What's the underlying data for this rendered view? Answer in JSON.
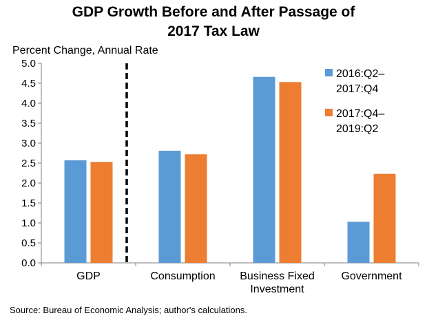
{
  "chart_data": {
    "type": "bar",
    "title_lines": [
      "GDP Growth Before and After Passage of",
      "2017 Tax Law"
    ],
    "ylabel": "Percent Change, Annual Rate",
    "xlabel": "",
    "ylim": [
      0,
      5
    ],
    "yticks": [
      "0.0",
      "0.5",
      "1.0",
      "1.5",
      "2.0",
      "2.5",
      "3.0",
      "3.5",
      "4.0",
      "4.5",
      "5.0"
    ],
    "categories": [
      [
        "GDP"
      ],
      [
        "Consumption"
      ],
      [
        "Business Fixed",
        "Investment"
      ],
      [
        "Government"
      ]
    ],
    "series": [
      {
        "name_lines": [
          "2016:Q2–",
          "2017:Q4"
        ],
        "color": "#5B9BD5",
        "values": [
          2.57,
          2.81,
          4.66,
          1.03
        ]
      },
      {
        "name_lines": [
          "2017:Q4–",
          "2019:Q2"
        ],
        "color": "#ED7D31",
        "values": [
          2.53,
          2.72,
          4.53,
          2.23
        ]
      }
    ],
    "grid": false,
    "legend_position": "top-right",
    "divider": "dashed vertical line after GDP"
  },
  "source": "Source: Bureau of Economic Analysis; author's calculations."
}
